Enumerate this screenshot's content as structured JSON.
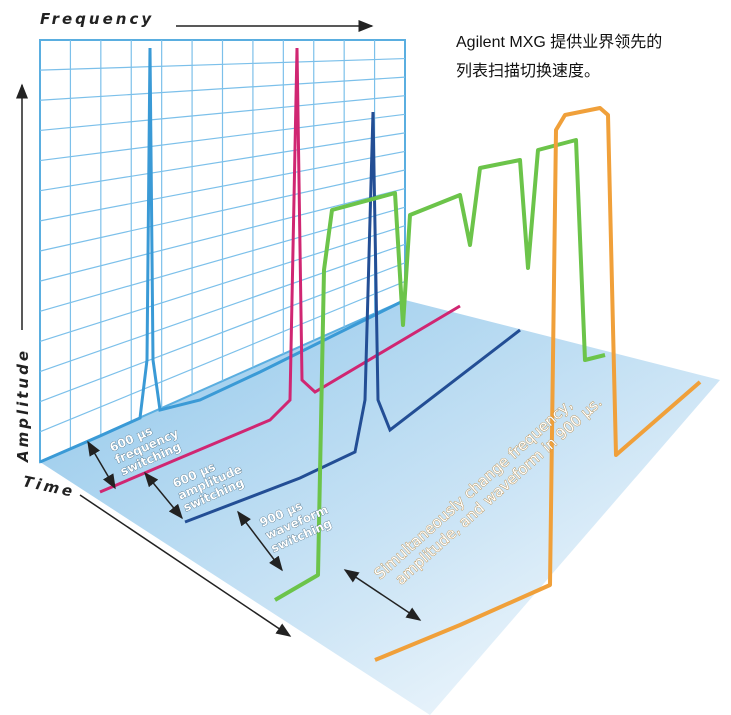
{
  "axes": {
    "frequency": "Frequency",
    "amplitude": "Amplitude",
    "time": "Time"
  },
  "caption": [
    "Agilent MXG 提供业界领先的",
    "列表扫描切换速度。"
  ],
  "annotations": [
    [
      "600 µs",
      "frequency",
      "switching"
    ],
    [
      "600 µs",
      "amplitude",
      "switching"
    ],
    [
      "900 µs",
      "waveform",
      "switching"
    ],
    [
      "Simultaneously change frequency,",
      "amplitude, and waveform in 900 µs."
    ]
  ]
}
